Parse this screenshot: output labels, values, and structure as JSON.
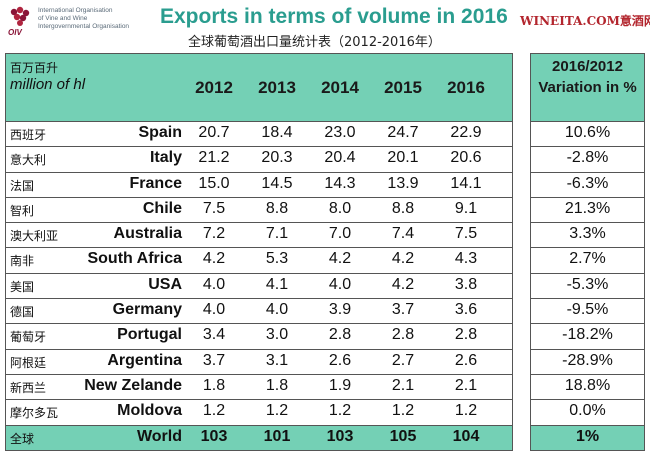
{
  "header": {
    "logo_brand": "OIV",
    "logo_lines": [
      "International Organisation",
      "of Vine and Wine",
      "Intergovernmental Organisation"
    ],
    "title": "Exports in terms of volume in 2016",
    "subtitle": "全球葡萄酒出口量统计表（2012-2016年）",
    "watermark": "WINEITA.COM意酒网"
  },
  "table": {
    "unit_cn": "百万百升",
    "unit_en": "million of hl",
    "variation_header": "2016/2012 Variation in %"
  },
  "chart_data": {
    "type": "table",
    "columns": [
      "2012",
      "2013",
      "2014",
      "2015",
      "2016"
    ],
    "variation_column": "2016/2012 Variation in %",
    "rows": [
      {
        "cn": "西班牙",
        "en": "Spain",
        "values": [
          "20.7",
          "18.4",
          "23.0",
          "24.7",
          "22.9"
        ],
        "variation": "10.6%"
      },
      {
        "cn": "意大利",
        "en": "Italy",
        "values": [
          "21.2",
          "20.3",
          "20.4",
          "20.1",
          "20.6"
        ],
        "variation": "-2.8%"
      },
      {
        "cn": "法国",
        "en": "France",
        "values": [
          "15.0",
          "14.5",
          "14.3",
          "13.9",
          "14.1"
        ],
        "variation": "-6.3%"
      },
      {
        "cn": "智利",
        "en": "Chile",
        "values": [
          "7.5",
          "8.8",
          "8.0",
          "8.8",
          "9.1"
        ],
        "variation": "21.3%"
      },
      {
        "cn": "澳大利亚",
        "en": "Australia",
        "values": [
          "7.2",
          "7.1",
          "7.0",
          "7.4",
          "7.5"
        ],
        "variation": "3.3%"
      },
      {
        "cn": "南非",
        "en": "South Africa",
        "values": [
          "4.2",
          "5.3",
          "4.2",
          "4.2",
          "4.3"
        ],
        "variation": "2.7%"
      },
      {
        "cn": "美国",
        "en": "USA",
        "values": [
          "4.0",
          "4.1",
          "4.0",
          "4.2",
          "3.8"
        ],
        "variation": "-5.3%"
      },
      {
        "cn": "德国",
        "en": "Germany",
        "values": [
          "4.0",
          "4.0",
          "3.9",
          "3.7",
          "3.6"
        ],
        "variation": "-9.5%"
      },
      {
        "cn": "葡萄牙",
        "en": "Portugal",
        "values": [
          "3.4",
          "3.0",
          "2.8",
          "2.8",
          "2.8"
        ],
        "variation": "-18.2%"
      },
      {
        "cn": "阿根廷",
        "en": "Argentina",
        "values": [
          "3.7",
          "3.1",
          "2.6",
          "2.7",
          "2.6"
        ],
        "variation": "-28.9%"
      },
      {
        "cn": "新西兰",
        "en": "New Zelande",
        "values": [
          "1.8",
          "1.8",
          "1.9",
          "2.1",
          "2.1"
        ],
        "variation": "18.8%"
      },
      {
        "cn": "摩尔多瓦",
        "en": "Moldova",
        "values": [
          "1.2",
          "1.2",
          "1.2",
          "1.2",
          "1.2"
        ],
        "variation": "0.0%"
      },
      {
        "cn": "全球",
        "en": "World",
        "values": [
          "103",
          "101",
          "103",
          "105",
          "104"
        ],
        "variation": "1%",
        "total": true
      }
    ]
  },
  "colors": {
    "header_fill": "#74d0b5",
    "title": "#2a9d8f",
    "watermark": "#b3262e",
    "logo": "#8a1538"
  }
}
